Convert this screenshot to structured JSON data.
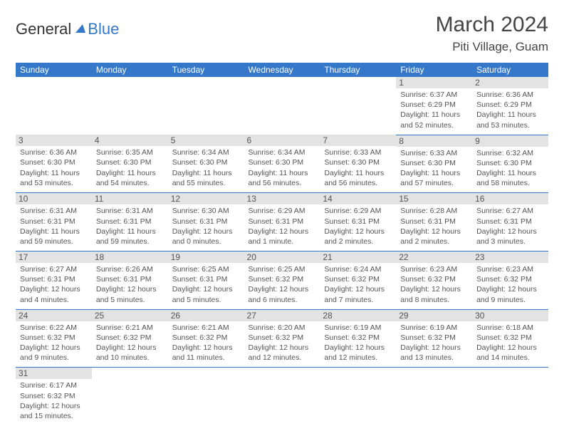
{
  "logo": {
    "word1": "General",
    "word2": "Blue"
  },
  "title": "March 2024",
  "location": "Piti Village, Guam",
  "colors": {
    "header_bg": "#3578c9",
    "header_fg": "#ffffff",
    "daynum_bg": "#e3e3e3",
    "text": "#555555",
    "page_bg": "#ffffff",
    "row_border": "#3578c9",
    "logo_blue": "#3578c9"
  },
  "typography": {
    "title_fontsize": 30,
    "location_fontsize": 17,
    "dayheader_fontsize": 12,
    "cell_fontsize": 10.5,
    "logo_fontsize": 22
  },
  "day_names": [
    "Sunday",
    "Monday",
    "Tuesday",
    "Wednesday",
    "Thursday",
    "Friday",
    "Saturday"
  ],
  "weeks": [
    [
      {
        "empty": true
      },
      {
        "empty": true
      },
      {
        "empty": true
      },
      {
        "empty": true
      },
      {
        "empty": true
      },
      {
        "day": "1",
        "sunrise": "Sunrise: 6:37 AM",
        "sunset": "Sunset: 6:29 PM",
        "daylight": "Daylight: 11 hours and 52 minutes."
      },
      {
        "day": "2",
        "sunrise": "Sunrise: 6:36 AM",
        "sunset": "Sunset: 6:29 PM",
        "daylight": "Daylight: 11 hours and 53 minutes."
      }
    ],
    [
      {
        "day": "3",
        "sunrise": "Sunrise: 6:36 AM",
        "sunset": "Sunset: 6:30 PM",
        "daylight": "Daylight: 11 hours and 53 minutes."
      },
      {
        "day": "4",
        "sunrise": "Sunrise: 6:35 AM",
        "sunset": "Sunset: 6:30 PM",
        "daylight": "Daylight: 11 hours and 54 minutes."
      },
      {
        "day": "5",
        "sunrise": "Sunrise: 6:34 AM",
        "sunset": "Sunset: 6:30 PM",
        "daylight": "Daylight: 11 hours and 55 minutes."
      },
      {
        "day": "6",
        "sunrise": "Sunrise: 6:34 AM",
        "sunset": "Sunset: 6:30 PM",
        "daylight": "Daylight: 11 hours and 56 minutes."
      },
      {
        "day": "7",
        "sunrise": "Sunrise: 6:33 AM",
        "sunset": "Sunset: 6:30 PM",
        "daylight": "Daylight: 11 hours and 56 minutes."
      },
      {
        "day": "8",
        "sunrise": "Sunrise: 6:33 AM",
        "sunset": "Sunset: 6:30 PM",
        "daylight": "Daylight: 11 hours and 57 minutes."
      },
      {
        "day": "9",
        "sunrise": "Sunrise: 6:32 AM",
        "sunset": "Sunset: 6:30 PM",
        "daylight": "Daylight: 11 hours and 58 minutes."
      }
    ],
    [
      {
        "day": "10",
        "sunrise": "Sunrise: 6:31 AM",
        "sunset": "Sunset: 6:31 PM",
        "daylight": "Daylight: 11 hours and 59 minutes."
      },
      {
        "day": "11",
        "sunrise": "Sunrise: 6:31 AM",
        "sunset": "Sunset: 6:31 PM",
        "daylight": "Daylight: 11 hours and 59 minutes."
      },
      {
        "day": "12",
        "sunrise": "Sunrise: 6:30 AM",
        "sunset": "Sunset: 6:31 PM",
        "daylight": "Daylight: 12 hours and 0 minutes."
      },
      {
        "day": "13",
        "sunrise": "Sunrise: 6:29 AM",
        "sunset": "Sunset: 6:31 PM",
        "daylight": "Daylight: 12 hours and 1 minute."
      },
      {
        "day": "14",
        "sunrise": "Sunrise: 6:29 AM",
        "sunset": "Sunset: 6:31 PM",
        "daylight": "Daylight: 12 hours and 2 minutes."
      },
      {
        "day": "15",
        "sunrise": "Sunrise: 6:28 AM",
        "sunset": "Sunset: 6:31 PM",
        "daylight": "Daylight: 12 hours and 2 minutes."
      },
      {
        "day": "16",
        "sunrise": "Sunrise: 6:27 AM",
        "sunset": "Sunset: 6:31 PM",
        "daylight": "Daylight: 12 hours and 3 minutes."
      }
    ],
    [
      {
        "day": "17",
        "sunrise": "Sunrise: 6:27 AM",
        "sunset": "Sunset: 6:31 PM",
        "daylight": "Daylight: 12 hours and 4 minutes."
      },
      {
        "day": "18",
        "sunrise": "Sunrise: 6:26 AM",
        "sunset": "Sunset: 6:31 PM",
        "daylight": "Daylight: 12 hours and 5 minutes."
      },
      {
        "day": "19",
        "sunrise": "Sunrise: 6:25 AM",
        "sunset": "Sunset: 6:31 PM",
        "daylight": "Daylight: 12 hours and 5 minutes."
      },
      {
        "day": "20",
        "sunrise": "Sunrise: 6:25 AM",
        "sunset": "Sunset: 6:32 PM",
        "daylight": "Daylight: 12 hours and 6 minutes."
      },
      {
        "day": "21",
        "sunrise": "Sunrise: 6:24 AM",
        "sunset": "Sunset: 6:32 PM",
        "daylight": "Daylight: 12 hours and 7 minutes."
      },
      {
        "day": "22",
        "sunrise": "Sunrise: 6:23 AM",
        "sunset": "Sunset: 6:32 PM",
        "daylight": "Daylight: 12 hours and 8 minutes."
      },
      {
        "day": "23",
        "sunrise": "Sunrise: 6:23 AM",
        "sunset": "Sunset: 6:32 PM",
        "daylight": "Daylight: 12 hours and 9 minutes."
      }
    ],
    [
      {
        "day": "24",
        "sunrise": "Sunrise: 6:22 AM",
        "sunset": "Sunset: 6:32 PM",
        "daylight": "Daylight: 12 hours and 9 minutes."
      },
      {
        "day": "25",
        "sunrise": "Sunrise: 6:21 AM",
        "sunset": "Sunset: 6:32 PM",
        "daylight": "Daylight: 12 hours and 10 minutes."
      },
      {
        "day": "26",
        "sunrise": "Sunrise: 6:21 AM",
        "sunset": "Sunset: 6:32 PM",
        "daylight": "Daylight: 12 hours and 11 minutes."
      },
      {
        "day": "27",
        "sunrise": "Sunrise: 6:20 AM",
        "sunset": "Sunset: 6:32 PM",
        "daylight": "Daylight: 12 hours and 12 minutes."
      },
      {
        "day": "28",
        "sunrise": "Sunrise: 6:19 AM",
        "sunset": "Sunset: 6:32 PM",
        "daylight": "Daylight: 12 hours and 12 minutes."
      },
      {
        "day": "29",
        "sunrise": "Sunrise: 6:19 AM",
        "sunset": "Sunset: 6:32 PM",
        "daylight": "Daylight: 12 hours and 13 minutes."
      },
      {
        "day": "30",
        "sunrise": "Sunrise: 6:18 AM",
        "sunset": "Sunset: 6:32 PM",
        "daylight": "Daylight: 12 hours and 14 minutes."
      }
    ],
    [
      {
        "day": "31",
        "sunrise": "Sunrise: 6:17 AM",
        "sunset": "Sunset: 6:32 PM",
        "daylight": "Daylight: 12 hours and 15 minutes."
      },
      {
        "empty": true
      },
      {
        "empty": true
      },
      {
        "empty": true
      },
      {
        "empty": true
      },
      {
        "empty": true
      },
      {
        "empty": true
      }
    ]
  ]
}
